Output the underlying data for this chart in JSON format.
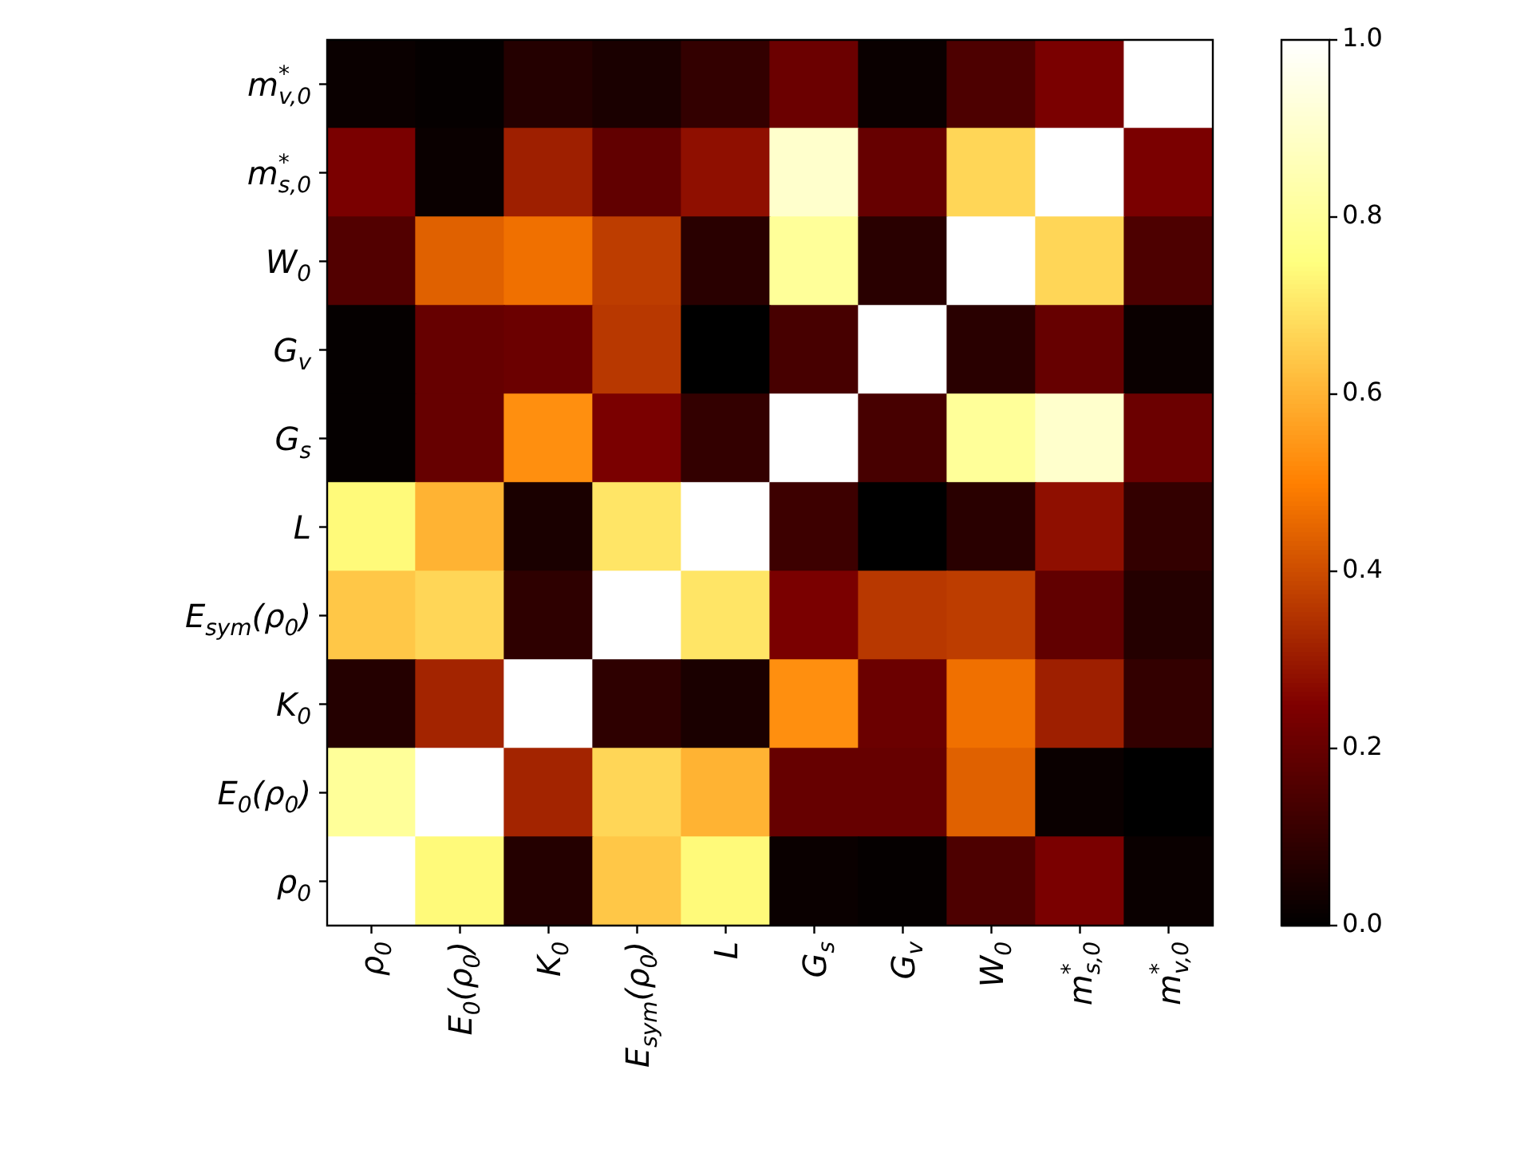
{
  "chart_data": {
    "type": "heatmap",
    "categories": [
      "ρ$_{0}$",
      "E$_{0}$(ρ$_{0}$)",
      "K$_{0}$",
      "E$_{sym}$(ρ$_{0}$)",
      "L",
      "G$_{s}$",
      "G$_{v}$",
      "W$_{0}$",
      "m$^{*}$$_{s,0}$",
      "m$^{*}$$_{v,0}$"
    ],
    "y_categories": [
      "m$^{*}$$_{v,0}$",
      "m$^{*}$$_{s,0}$",
      "W$_{0}$",
      "G$_{v}$",
      "G$_{s}$",
      "L",
      "E$_{sym}$(ρ$_{0}$)",
      "K$_{0}$",
      "E$_{0}$(ρ$_{0}$)",
      "ρ$_{0}$"
    ],
    "cells": [
      [
        0.02,
        0.01,
        0.07,
        0.05,
        0.1,
        0.21,
        0.02,
        0.15,
        0.24,
        1.0
      ],
      [
        0.24,
        0.02,
        0.31,
        0.19,
        0.28,
        0.9,
        0.2,
        0.67,
        1.0,
        0.24
      ],
      [
        0.16,
        0.44,
        0.47,
        0.37,
        0.08,
        0.8,
        0.08,
        1.0,
        0.67,
        0.15
      ],
      [
        0.01,
        0.2,
        0.21,
        0.36,
        0.0,
        0.14,
        1.0,
        0.08,
        0.2,
        0.02
      ],
      [
        0.01,
        0.2,
        0.53,
        0.24,
        0.1,
        1.0,
        0.14,
        0.8,
        0.9,
        0.21
      ],
      [
        0.74,
        0.6,
        0.05,
        0.7,
        1.0,
        0.12,
        0.0,
        0.08,
        0.28,
        0.1
      ],
      [
        0.64,
        0.67,
        0.09,
        1.0,
        0.7,
        0.24,
        0.36,
        0.37,
        0.19,
        0.07
      ],
      [
        0.07,
        0.32,
        1.0,
        0.09,
        0.05,
        0.53,
        0.21,
        0.47,
        0.31,
        0.1
      ],
      [
        0.8,
        1.0,
        0.32,
        0.67,
        0.6,
        0.2,
        0.2,
        0.44,
        0.02,
        0.0
      ],
      [
        1.0,
        0.74,
        0.07,
        0.64,
        0.74,
        0.02,
        0.01,
        0.15,
        0.24,
        0.02
      ]
    ],
    "clim": [
      0,
      1
    ],
    "cticks": [
      {
        "value": 0,
        "label": "0.0"
      },
      0.2,
      0.4,
      0.6,
      0.8,
      {
        "value": 1,
        "label": "1.0"
      }
    ]
  }
}
